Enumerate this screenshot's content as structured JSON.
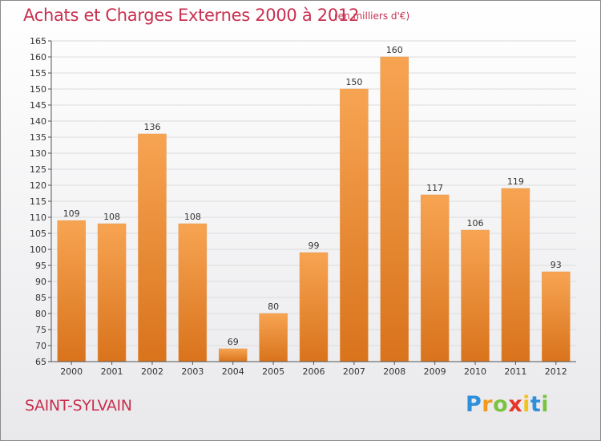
{
  "header": {
    "title": "Achats et Charges Externes 2000 à 2012",
    "subtitle": "(en milliers d'€)"
  },
  "footer": {
    "place": "SAINT-SYLVAIN",
    "logo_letters": [
      {
        "char": "P",
        "color": "#2f8fd8"
      },
      {
        "char": "r",
        "color": "#f29a1f"
      },
      {
        "char": "o",
        "color": "#7cc242"
      },
      {
        "char": "x",
        "color": "#e8352a"
      },
      {
        "char": "i",
        "color": "#f2c21f"
      },
      {
        "char": "t",
        "color": "#2f8fd8"
      },
      {
        "char": "i",
        "color": "#7cc242"
      }
    ]
  },
  "chart_data": {
    "type": "bar",
    "categories": [
      "2000",
      "2001",
      "2002",
      "2003",
      "2004",
      "2005",
      "2006",
      "2007",
      "2008",
      "2009",
      "2010",
      "2011",
      "2012"
    ],
    "values": [
      109,
      108,
      136,
      108,
      69,
      80,
      99,
      150,
      160,
      117,
      106,
      119,
      93
    ],
    "data_labels": [
      "109",
      "108",
      "136",
      "108",
      "69",
      "80",
      "99",
      "150",
      "160",
      "117",
      "106",
      "119",
      "93"
    ],
    "ylim": [
      65,
      165
    ],
    "yticks": [
      65,
      70,
      75,
      80,
      85,
      90,
      95,
      100,
      105,
      110,
      115,
      120,
      125,
      130,
      135,
      140,
      145,
      150,
      155,
      160,
      165
    ],
    "grid": true,
    "bar_color_top": "#f7a452",
    "bar_color_bottom": "#d9731c",
    "title": "Achats et Charges Externes 2000 à 2012",
    "xlabel": "",
    "ylabel": ""
  }
}
